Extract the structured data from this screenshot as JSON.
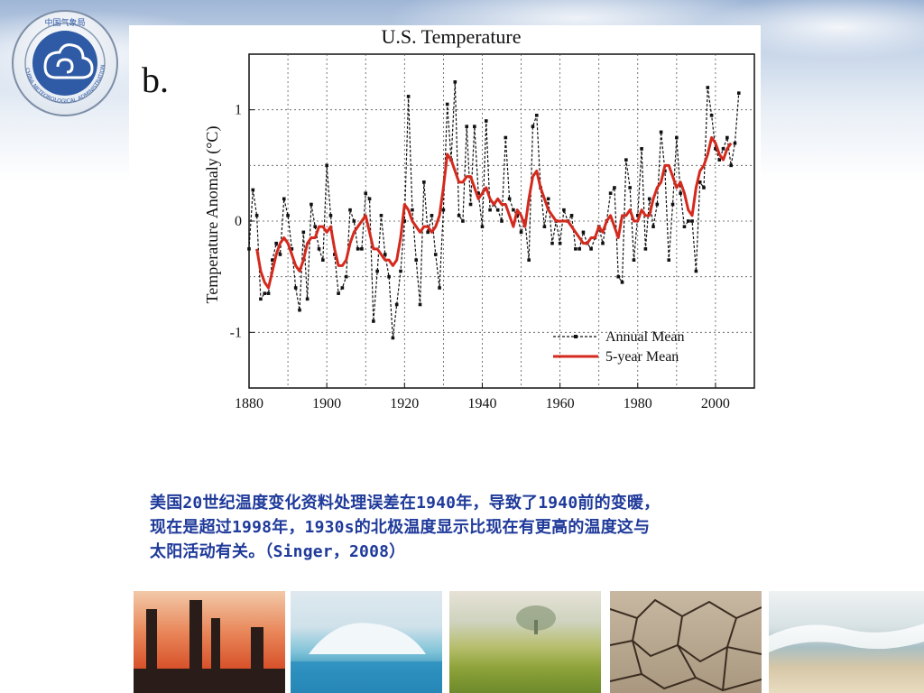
{
  "logo": {
    "name": "China Meteorological Administration emblem",
    "top_text": "中国气象局",
    "ring_text": "CHINA METEOROLOGICAL ADMINISTRATION"
  },
  "panel_label": "b.",
  "chart_data": {
    "type": "line",
    "title": "U.S. Temperature",
    "xlabel": "",
    "ylabel": "Temperature Anomaly (°C)",
    "xlim": [
      1880,
      2010
    ],
    "ylim": [
      -1.5,
      1.5
    ],
    "xticks": [
      1880,
      1900,
      1920,
      1940,
      1960,
      1980,
      2000
    ],
    "yticks": [
      -1,
      0,
      1
    ],
    "grid": true,
    "legend": "bottom-right",
    "series": [
      {
        "name": "Annual Mean",
        "style": "dashed-markers",
        "color": "#111111",
        "x": [
          1880,
          1881,
          1882,
          1883,
          1884,
          1885,
          1886,
          1887,
          1888,
          1889,
          1890,
          1891,
          1892,
          1893,
          1894,
          1895,
          1896,
          1897,
          1898,
          1899,
          1900,
          1901,
          1902,
          1903,
          1904,
          1905,
          1906,
          1907,
          1908,
          1909,
          1910,
          1911,
          1912,
          1913,
          1914,
          1915,
          1916,
          1917,
          1918,
          1919,
          1920,
          1921,
          1922,
          1923,
          1924,
          1925,
          1926,
          1927,
          1928,
          1929,
          1930,
          1931,
          1932,
          1933,
          1934,
          1935,
          1936,
          1937,
          1938,
          1939,
          1940,
          1941,
          1942,
          1943,
          1944,
          1945,
          1946,
          1947,
          1948,
          1949,
          1950,
          1951,
          1952,
          1953,
          1954,
          1955,
          1956,
          1957,
          1958,
          1959,
          1960,
          1961,
          1962,
          1963,
          1964,
          1965,
          1966,
          1967,
          1968,
          1969,
          1970,
          1971,
          1972,
          1973,
          1974,
          1975,
          1976,
          1977,
          1978,
          1979,
          1980,
          1981,
          1982,
          1983,
          1984,
          1985,
          1986,
          1987,
          1988,
          1989,
          1990,
          1991,
          1992,
          1993,
          1994,
          1995,
          1996,
          1997,
          1998,
          1999,
          2000,
          2001,
          2002,
          2003,
          2004,
          2005,
          2006
        ],
        "y": [
          -0.25,
          0.28,
          0.05,
          -0.7,
          -0.65,
          -0.65,
          -0.35,
          -0.2,
          -0.3,
          0.2,
          0.05,
          -0.25,
          -0.6,
          -0.8,
          -0.1,
          -0.7,
          0.15,
          -0.05,
          -0.25,
          -0.35,
          0.5,
          0.05,
          -0.3,
          -0.65,
          -0.6,
          -0.5,
          0.1,
          0.0,
          -0.25,
          -0.25,
          0.25,
          0.2,
          -0.9,
          -0.45,
          0.05,
          -0.3,
          -0.5,
          -1.05,
          -0.75,
          -0.45,
          0.0,
          1.12,
          0.1,
          -0.35,
          -0.75,
          0.35,
          -0.1,
          0.05,
          -0.3,
          -0.6,
          0.1,
          1.05,
          0.55,
          1.25,
          0.05,
          0.0,
          0.85,
          0.15,
          0.85,
          0.25,
          -0.05,
          0.9,
          0.1,
          0.15,
          0.1,
          0.0,
          0.75,
          0.2,
          0.1,
          0.05,
          -0.1,
          0.0,
          -0.35,
          0.85,
          0.95,
          0.3,
          -0.05,
          0.2,
          -0.2,
          0.0,
          -0.2,
          0.1,
          0.0,
          0.05,
          -0.25,
          -0.25,
          -0.1,
          -0.2,
          -0.25,
          -0.15,
          -0.05,
          -0.2,
          0.0,
          0.25,
          0.3,
          -0.5,
          -0.55,
          0.55,
          0.3,
          -0.35,
          0.05,
          0.65,
          -0.25,
          0.2,
          -0.05,
          0.15,
          0.8,
          0.45,
          -0.35,
          0.15,
          0.75,
          0.25,
          -0.05,
          0.0,
          0.0,
          -0.45,
          0.35,
          0.3,
          1.2,
          0.95,
          0.65,
          0.55,
          0.65,
          0.75,
          0.5,
          0.7,
          1.15
        ]
      },
      {
        "name": "5-year Mean",
        "style": "solid",
        "color": "#d42a1e",
        "x": [
          1882,
          1883,
          1884,
          1885,
          1886,
          1887,
          1888,
          1889,
          1890,
          1891,
          1892,
          1893,
          1894,
          1895,
          1896,
          1897,
          1898,
          1899,
          1900,
          1901,
          1902,
          1903,
          1904,
          1905,
          1906,
          1907,
          1908,
          1909,
          1910,
          1911,
          1912,
          1913,
          1914,
          1915,
          1916,
          1917,
          1918,
          1919,
          1920,
          1921,
          1922,
          1923,
          1924,
          1925,
          1926,
          1927,
          1928,
          1929,
          1930,
          1931,
          1932,
          1933,
          1934,
          1935,
          1936,
          1937,
          1938,
          1939,
          1940,
          1941,
          1942,
          1943,
          1944,
          1945,
          1946,
          1947,
          1948,
          1949,
          1950,
          1951,
          1952,
          1953,
          1954,
          1955,
          1956,
          1957,
          1958,
          1959,
          1960,
          1961,
          1962,
          1963,
          1964,
          1965,
          1966,
          1967,
          1968,
          1969,
          1970,
          1971,
          1972,
          1973,
          1974,
          1975,
          1976,
          1977,
          1978,
          1979,
          1980,
          1981,
          1982,
          1983,
          1984,
          1985,
          1986,
          1987,
          1988,
          1989,
          1990,
          1991,
          1992,
          1993,
          1994,
          1995,
          1996,
          1997,
          1998,
          1999,
          2000,
          2001,
          2002,
          2003,
          2004
        ],
        "y": [
          -0.25,
          -0.45,
          -0.55,
          -0.6,
          -0.45,
          -0.3,
          -0.2,
          -0.15,
          -0.2,
          -0.3,
          -0.4,
          -0.45,
          -0.35,
          -0.2,
          -0.15,
          -0.15,
          -0.05,
          -0.05,
          -0.1,
          -0.05,
          -0.25,
          -0.4,
          -0.4,
          -0.35,
          -0.2,
          -0.1,
          -0.05,
          0.0,
          0.05,
          -0.1,
          -0.25,
          -0.25,
          -0.3,
          -0.35,
          -0.35,
          -0.4,
          -0.35,
          -0.15,
          0.15,
          0.1,
          0.0,
          -0.05,
          -0.1,
          -0.05,
          -0.05,
          -0.1,
          -0.05,
          0.05,
          0.3,
          0.6,
          0.55,
          0.45,
          0.35,
          0.35,
          0.4,
          0.4,
          0.3,
          0.2,
          0.25,
          0.3,
          0.2,
          0.15,
          0.2,
          0.15,
          0.15,
          0.05,
          -0.05,
          0.1,
          0.05,
          -0.05,
          0.2,
          0.4,
          0.45,
          0.3,
          0.2,
          0.1,
          0.05,
          0.0,
          0.0,
          0.0,
          0.0,
          -0.05,
          -0.1,
          -0.15,
          -0.2,
          -0.2,
          -0.15,
          -0.15,
          -0.05,
          -0.1,
          0.0,
          0.05,
          -0.05,
          -0.15,
          0.05,
          0.05,
          0.1,
          0.0,
          0.0,
          0.1,
          0.05,
          0.05,
          0.2,
          0.3,
          0.35,
          0.5,
          0.5,
          0.4,
          0.3,
          0.35,
          0.25,
          0.1,
          0.05,
          0.3,
          0.45,
          0.5,
          0.6,
          0.75,
          0.7,
          0.6,
          0.55,
          0.65,
          0.7
        ]
      }
    ]
  },
  "caption": {
    "line1": "美国20世纪温度变化资料处理误差在1940年，导致了1940前的变暖，",
    "line2": "现在是超过1998年，1930s的北极温度显示比现在有更高的温度这与",
    "line3": "太阳活动有关。（Singer，2008）"
  },
  "bottom_images": [
    {
      "name": "industrial-smokestacks-image"
    },
    {
      "name": "melting-iceberg-image"
    },
    {
      "name": "green-field-image"
    },
    {
      "name": "cracked-dry-earth-image"
    },
    {
      "name": "shoreline-waves-image"
    }
  ]
}
